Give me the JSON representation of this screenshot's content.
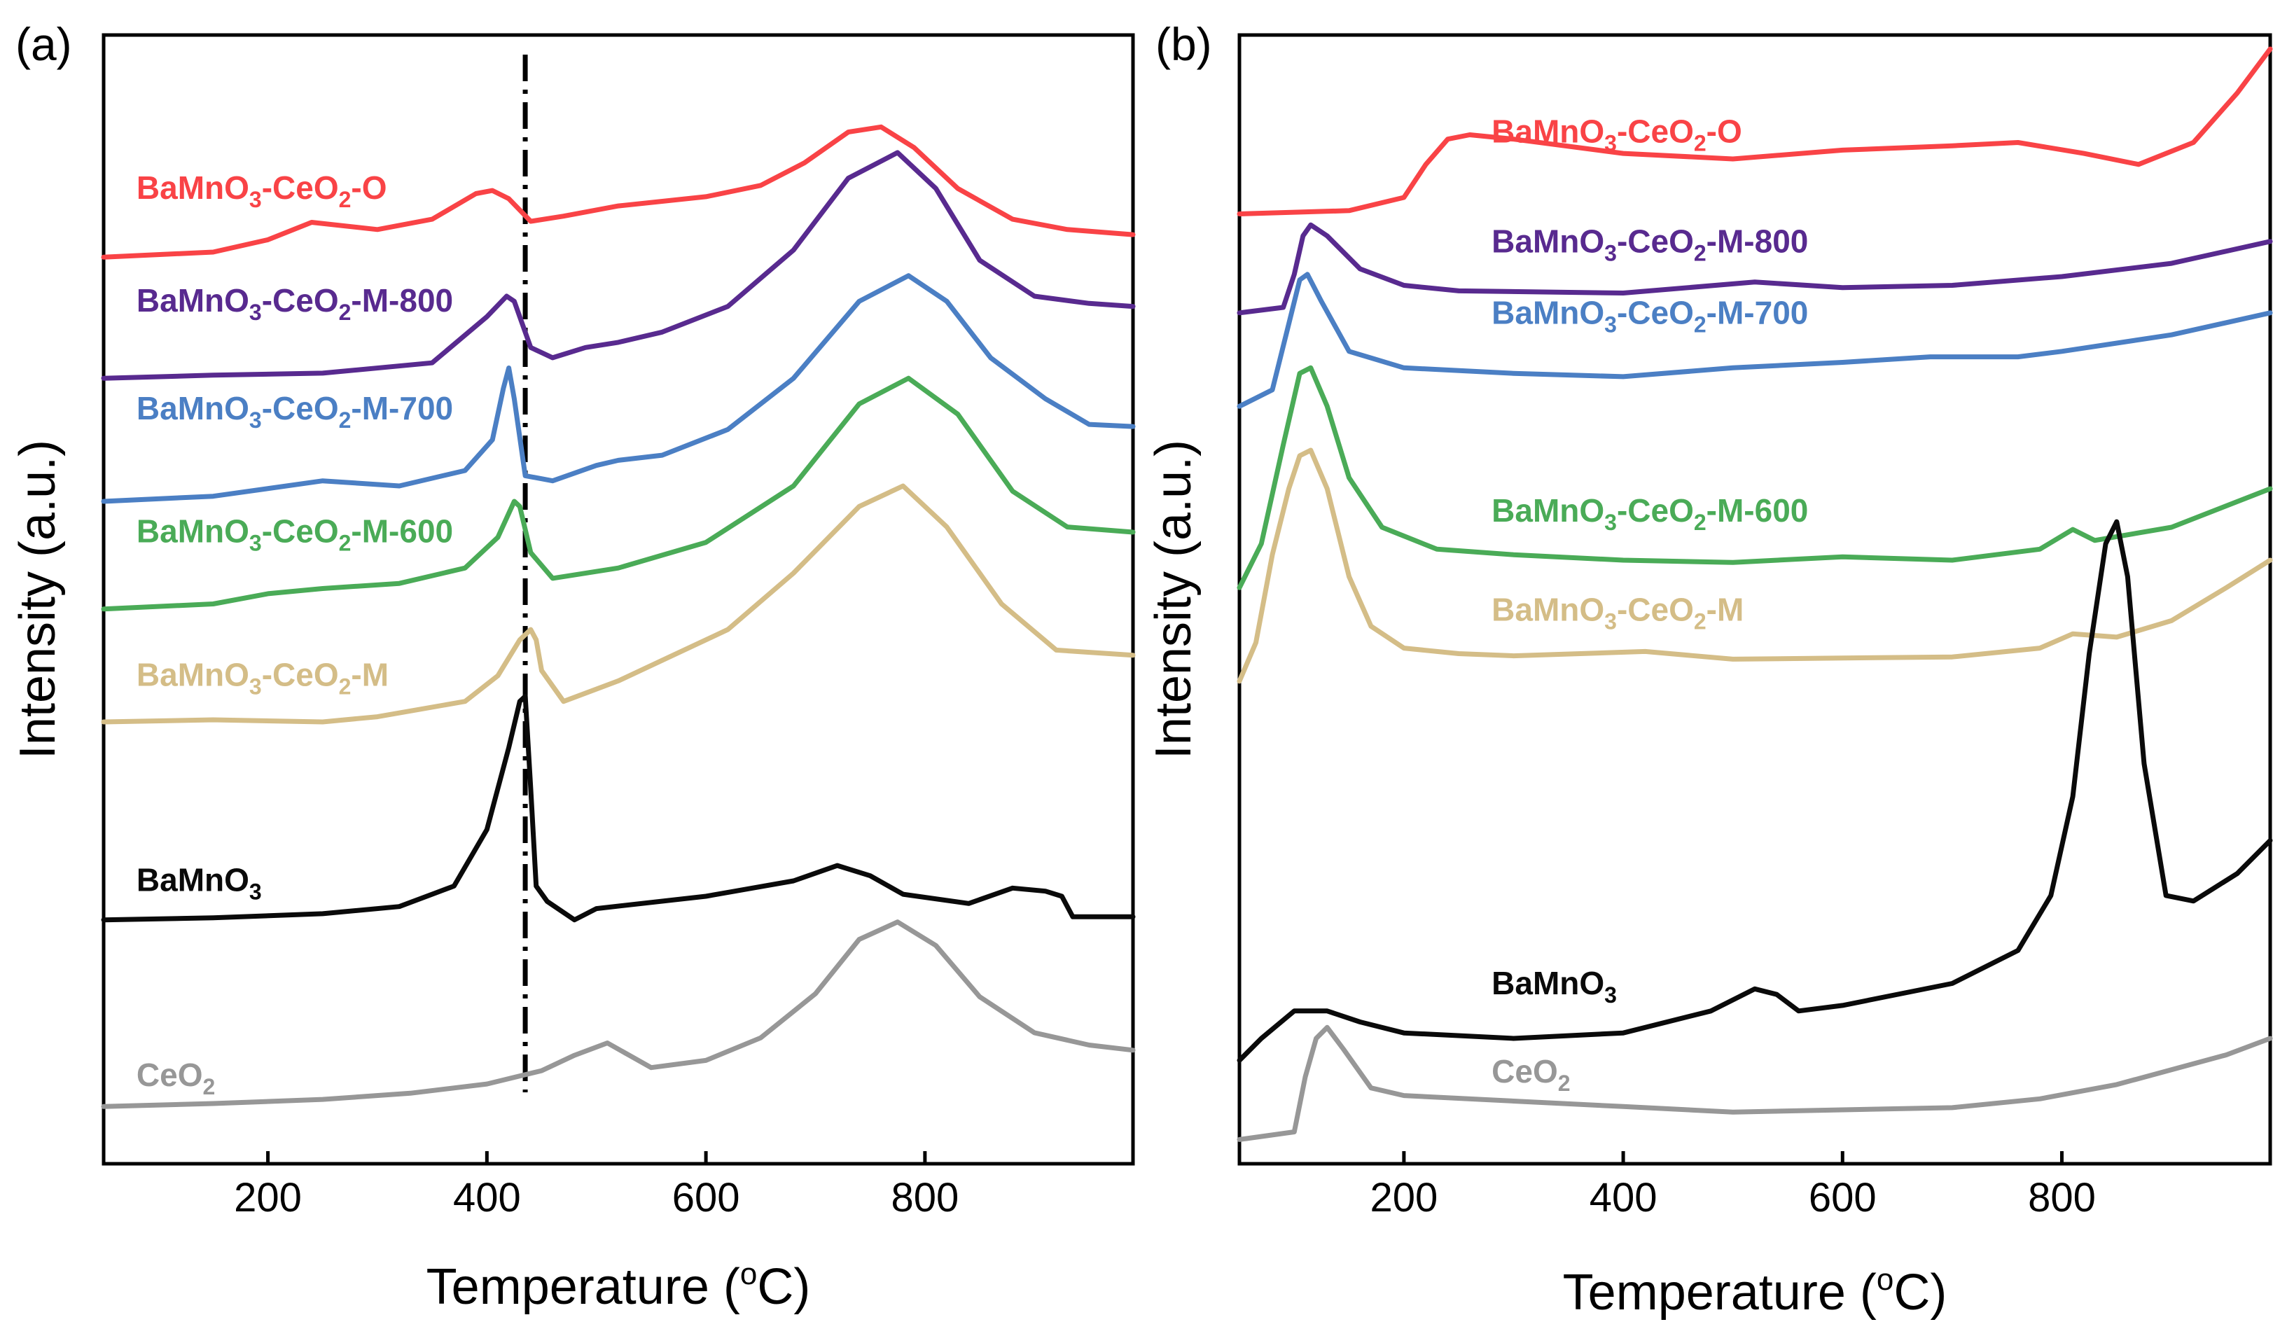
{
  "chart_data": [
    {
      "type": "line",
      "panel_label": "(a)",
      "xlabel": "Temperature (°C)",
      "xlabel_parts": [
        "Temperature (",
        "o",
        "C)"
      ],
      "ylabel": "Intensity (a.u.)",
      "xlim": [
        50,
        990
      ],
      "ylim": [
        0,
        100
      ],
      "xticks": [
        200,
        400,
        600,
        800
      ],
      "xtick_labels": [
        "200",
        "400",
        "600",
        "800"
      ],
      "guide_line": {
        "x": 435,
        "style": "dash-dot"
      },
      "series": [
        {
          "name": "BaMnO3-CeO2-O",
          "label_parts": [
            "BaMnO",
            "3",
            "-CeO",
            "2",
            "-O"
          ],
          "color": "#f94346",
          "label_anchor": [
            80,
            89.5
          ],
          "x": [
            50,
            150,
            200,
            240,
            300,
            350,
            390,
            405,
            420,
            440,
            470,
            520,
            600,
            650,
            690,
            730,
            760,
            790,
            830,
            880,
            930,
            990
          ],
          "y": [
            83.8,
            84.3,
            85.5,
            87.2,
            86.5,
            87.5,
            90.0,
            90.3,
            89.5,
            87.3,
            87.8,
            88.8,
            89.7,
            90.8,
            93.0,
            96.0,
            96.5,
            94.5,
            90.5,
            87.5,
            86.5,
            86.0
          ]
        },
        {
          "name": "BaMnO3-CeO2-M-800",
          "label_parts": [
            "BaMnO",
            "3",
            "-CeO",
            "2",
            "-M-800"
          ],
          "color": "#582a8f",
          "label_anchor": [
            80,
            78.5
          ],
          "x": [
            50,
            150,
            250,
            350,
            400,
            418,
            425,
            440,
            460,
            490,
            520,
            560,
            620,
            680,
            730,
            775,
            810,
            850,
            900,
            950,
            990
          ],
          "y": [
            72.0,
            72.3,
            72.5,
            73.5,
            78.0,
            80.0,
            79.5,
            75.0,
            74.0,
            75.0,
            75.5,
            76.5,
            79.0,
            84.5,
            91.5,
            94.0,
            90.5,
            83.5,
            80.0,
            79.3,
            79.0
          ]
        },
        {
          "name": "BaMnO3-CeO2-M-700",
          "label_parts": [
            "BaMnO",
            "3",
            "-CeO",
            "2",
            "-M-700"
          ],
          "color": "#4b7fc4",
          "label_anchor": [
            80,
            68
          ],
          "x": [
            50,
            150,
            250,
            320,
            380,
            405,
            415,
            420,
            425,
            435,
            460,
            500,
            520,
            560,
            620,
            680,
            740,
            785,
            820,
            860,
            910,
            950,
            990
          ],
          "y": [
            60.0,
            60.5,
            62.0,
            61.5,
            63.0,
            66.0,
            71.0,
            73.0,
            70.0,
            62.5,
            62.0,
            63.5,
            64.0,
            64.5,
            67.0,
            72.0,
            79.5,
            82.0,
            79.5,
            74.0,
            70.0,
            67.5,
            67.3
          ]
        },
        {
          "name": "BaMnO3-CeO2-M-600",
          "label_parts": [
            "BaMnO",
            "3",
            "-CeO",
            "2",
            "-M-600"
          ],
          "color": "#4aab57",
          "label_anchor": [
            80,
            56
          ],
          "x": [
            50,
            150,
            200,
            250,
            320,
            380,
            410,
            425,
            430,
            440,
            460,
            520,
            600,
            680,
            740,
            785,
            830,
            880,
            930,
            990
          ],
          "y": [
            49.5,
            50.0,
            51.0,
            51.5,
            52.0,
            53.5,
            56.5,
            60.0,
            59.5,
            55.0,
            52.5,
            53.5,
            56.0,
            61.5,
            69.5,
            72.0,
            68.5,
            61.0,
            57.5,
            57.0
          ]
        },
        {
          "name": "BaMnO3-CeO2-M",
          "label_parts": [
            "BaMnO",
            "3",
            "-CeO",
            "2",
            "-M"
          ],
          "color": "#d4bd87",
          "label_anchor": [
            80,
            42
          ],
          "x": [
            50,
            150,
            250,
            300,
            380,
            410,
            430,
            440,
            445,
            450,
            470,
            520,
            560,
            620,
            680,
            740,
            780,
            820,
            870,
            920,
            990
          ],
          "y": [
            38.5,
            38.7,
            38.5,
            39.0,
            40.5,
            43.0,
            46.5,
            47.5,
            46.5,
            43.5,
            40.5,
            42.5,
            44.5,
            47.5,
            53.0,
            59.5,
            61.5,
            57.5,
            50.0,
            45.5,
            45.0
          ]
        },
        {
          "name": "BaMnO3",
          "label_parts": [
            "BaMnO",
            "3"
          ],
          "color": "#0a0a0a",
          "label_anchor": [
            80,
            22
          ],
          "x": [
            50,
            150,
            250,
            320,
            370,
            400,
            420,
            430,
            435,
            440,
            445,
            455,
            480,
            500,
            600,
            680,
            720,
            750,
            780,
            840,
            880,
            910,
            925,
            935,
            950,
            990
          ],
          "y": [
            19.2,
            19.4,
            19.8,
            20.5,
            22.5,
            28.0,
            36.0,
            40.5,
            41.0,
            32.0,
            22.5,
            21.0,
            19.2,
            20.3,
            21.5,
            23.0,
            24.5,
            23.5,
            21.7,
            20.8,
            22.3,
            22.0,
            21.5,
            19.5,
            19.5,
            19.5
          ]
        },
        {
          "name": "CeO2",
          "label_parts": [
            "CeO",
            "2"
          ],
          "color": "#979797",
          "label_anchor": [
            80,
            3
          ],
          "x": [
            50,
            150,
            250,
            330,
            400,
            450,
            480,
            510,
            530,
            550,
            600,
            650,
            700,
            740,
            775,
            810,
            850,
            900,
            950,
            990
          ],
          "y": [
            1.0,
            1.3,
            1.7,
            2.3,
            3.2,
            4.5,
            6.0,
            7.2,
            6.0,
            4.8,
            5.5,
            7.7,
            12.0,
            17.3,
            19.0,
            16.7,
            11.7,
            8.2,
            7.0,
            6.5
          ]
        }
      ]
    },
    {
      "type": "line",
      "panel_label": "(b)",
      "xlabel": "Temperature (°C)",
      "xlabel_parts": [
        "Temperature (",
        "o",
        "C)"
      ],
      "ylabel": "Intensity (a.u.)",
      "xlim": [
        50,
        990
      ],
      "ylim": [
        0,
        100
      ],
      "xticks": [
        200,
        400,
        600,
        800
      ],
      "xtick_labels": [
        "200",
        "400",
        "600",
        "800"
      ],
      "series": [
        {
          "name": "BaMnO3-CeO2-O",
          "label_parts": [
            "BaMnO",
            "3",
            "-CeO",
            "2",
            "-O"
          ],
          "color": "#f94346",
          "label_anchor": [
            280,
            91.5
          ],
          "x": [
            50,
            150,
            200,
            220,
            240,
            260,
            300,
            400,
            500,
            600,
            700,
            760,
            820,
            870,
            920,
            960,
            990
          ],
          "y": [
            85.0,
            85.3,
            86.5,
            89.5,
            91.8,
            92.2,
            91.8,
            90.5,
            90.0,
            90.8,
            91.2,
            91.5,
            90.5,
            89.5,
            91.5,
            96.0,
            100.0
          ]
        },
        {
          "name": "BaMnO3-CeO2-M-800",
          "label_parts": [
            "BaMnO",
            "3",
            "-CeO",
            "2",
            "-M-800"
          ],
          "color": "#582a8f",
          "label_anchor": [
            280,
            81.5
          ],
          "x": [
            50,
            90,
            100,
            108,
            115,
            130,
            160,
            200,
            250,
            400,
            520,
            600,
            700,
            800,
            900,
            990
          ],
          "y": [
            76.0,
            76.5,
            79.5,
            83.0,
            84.0,
            83.0,
            80.0,
            78.5,
            78.0,
            77.8,
            78.8,
            78.3,
            78.5,
            79.3,
            80.5,
            82.5
          ]
        },
        {
          "name": "BaMnO3-CeO2-M-700",
          "label_parts": [
            "BaMnO",
            "3",
            "-CeO",
            "2",
            "-M-700"
          ],
          "color": "#4b7fc4",
          "label_anchor": [
            280,
            75
          ],
          "x": [
            50,
            80,
            95,
            105,
            112,
            125,
            150,
            200,
            300,
            400,
            500,
            600,
            680,
            760,
            800,
            900,
            990
          ],
          "y": [
            67.5,
            69.0,
            75.0,
            79.0,
            79.5,
            77.0,
            72.5,
            71.0,
            70.5,
            70.2,
            71.0,
            71.5,
            72.0,
            72.0,
            72.5,
            74.0,
            76.0
          ]
        },
        {
          "name": "BaMnO3-CeO2-M-600",
          "label_parts": [
            "BaMnO",
            "3",
            "-CeO",
            "2",
            "-M-600"
          ],
          "color": "#4aab57",
          "label_anchor": [
            280,
            57
          ],
          "x": [
            50,
            70,
            90,
            105,
            115,
            130,
            150,
            180,
            230,
            300,
            400,
            500,
            600,
            700,
            780,
            810,
            830,
            900,
            990
          ],
          "y": [
            51.0,
            55.0,
            64.0,
            70.5,
            71.0,
            67.5,
            61.0,
            56.5,
            54.5,
            54.0,
            53.5,
            53.3,
            53.8,
            53.5,
            54.5,
            56.3,
            55.3,
            56.5,
            60.0
          ]
        },
        {
          "name": "BaMnO3-CeO2-M",
          "label_parts": [
            "BaMnO",
            "3",
            "-CeO",
            "2",
            "-M"
          ],
          "color": "#d4bd87",
          "label_anchor": [
            280,
            48
          ],
          "x": [
            50,
            65,
            80,
            95,
            105,
            115,
            130,
            150,
            170,
            200,
            250,
            300,
            420,
            500,
            600,
            700,
            780,
            810,
            850,
            900,
            950,
            990
          ],
          "y": [
            42.5,
            46.0,
            54.0,
            60.0,
            63.0,
            63.5,
            60.0,
            52.0,
            47.5,
            45.5,
            45.0,
            44.8,
            45.2,
            44.5,
            44.6,
            44.7,
            45.5,
            46.8,
            46.5,
            48.0,
            51.0,
            53.5
          ]
        },
        {
          "name": "BaMnO3",
          "label_parts": [
            "BaMnO",
            "3"
          ],
          "color": "#0a0a0a",
          "label_anchor": [
            280,
            14
          ],
          "x": [
            50,
            70,
            100,
            130,
            160,
            200,
            300,
            400,
            480,
            520,
            540,
            560,
            600,
            700,
            760,
            790,
            810,
            825,
            840,
            850,
            860,
            875,
            895,
            920,
            960,
            990
          ],
          "y": [
            8.0,
            10.0,
            12.5,
            12.5,
            11.5,
            10.5,
            10.0,
            10.5,
            12.5,
            14.5,
            14.0,
            12.5,
            13.0,
            15.0,
            18.0,
            23.0,
            32.0,
            45.0,
            55.0,
            57.0,
            52.0,
            35.0,
            23.0,
            22.5,
            25.0,
            28.0
          ]
        },
        {
          "name": "CeO2",
          "label_parts": [
            "CeO",
            "2"
          ],
          "color": "#979797",
          "label_anchor": [
            280,
            6
          ],
          "x": [
            50,
            100,
            110,
            120,
            130,
            145,
            170,
            200,
            300,
            400,
            500,
            600,
            700,
            780,
            850,
            950,
            990
          ],
          "y": [
            0.8,
            1.5,
            6.5,
            10.0,
            11.0,
            9.0,
            5.5,
            4.8,
            4.3,
            3.8,
            3.3,
            3.5,
            3.7,
            4.5,
            5.8,
            8.5,
            10.0
          ]
        }
      ]
    }
  ]
}
